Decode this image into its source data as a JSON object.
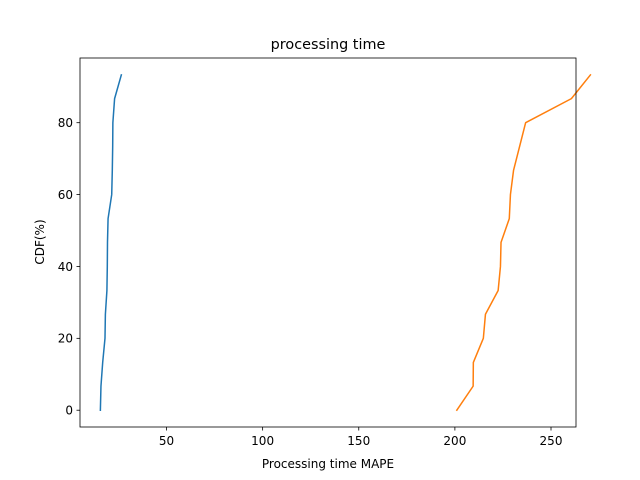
{
  "chart_data": {
    "type": "line",
    "title": "processing time",
    "xlabel": "Processing time MAPE",
    "ylabel": "CDF(%)",
    "xlim": [
      5,
      263
    ],
    "ylim": [
      -4.67,
      98
    ],
    "xticks": [
      50,
      100,
      150,
      200,
      250
    ],
    "yticks": [
      0,
      20,
      40,
      60,
      80
    ],
    "grid": false,
    "legend": "none",
    "series": [
      {
        "color": "#1f77b4",
        "points": [
          [
            15.6,
            0.0
          ],
          [
            15.9,
            6.7
          ],
          [
            16.8,
            13.3
          ],
          [
            18.0,
            20.0
          ],
          [
            18.2,
            26.7
          ],
          [
            19.0,
            33.3
          ],
          [
            19.2,
            40.0
          ],
          [
            19.3,
            46.7
          ],
          [
            19.6,
            53.3
          ],
          [
            21.5,
            60.0
          ],
          [
            21.8,
            66.7
          ],
          [
            22.0,
            73.3
          ],
          [
            22.1,
            80.0
          ],
          [
            23.0,
            86.7
          ],
          [
            26.5,
            93.3
          ]
        ]
      },
      {
        "color": "#ff7f0e",
        "points": [
          [
            201.0,
            0.0
          ],
          [
            209.5,
            6.7
          ],
          [
            209.6,
            13.3
          ],
          [
            214.8,
            20.0
          ],
          [
            215.9,
            26.7
          ],
          [
            222.5,
            33.3
          ],
          [
            223.7,
            40.0
          ],
          [
            224.0,
            46.7
          ],
          [
            228.3,
            53.3
          ],
          [
            228.9,
            60.0
          ],
          [
            230.5,
            66.7
          ],
          [
            236.8,
            80.0
          ],
          [
            260.6,
            86.7
          ],
          [
            270.5,
            93.3
          ]
        ]
      }
    ]
  }
}
